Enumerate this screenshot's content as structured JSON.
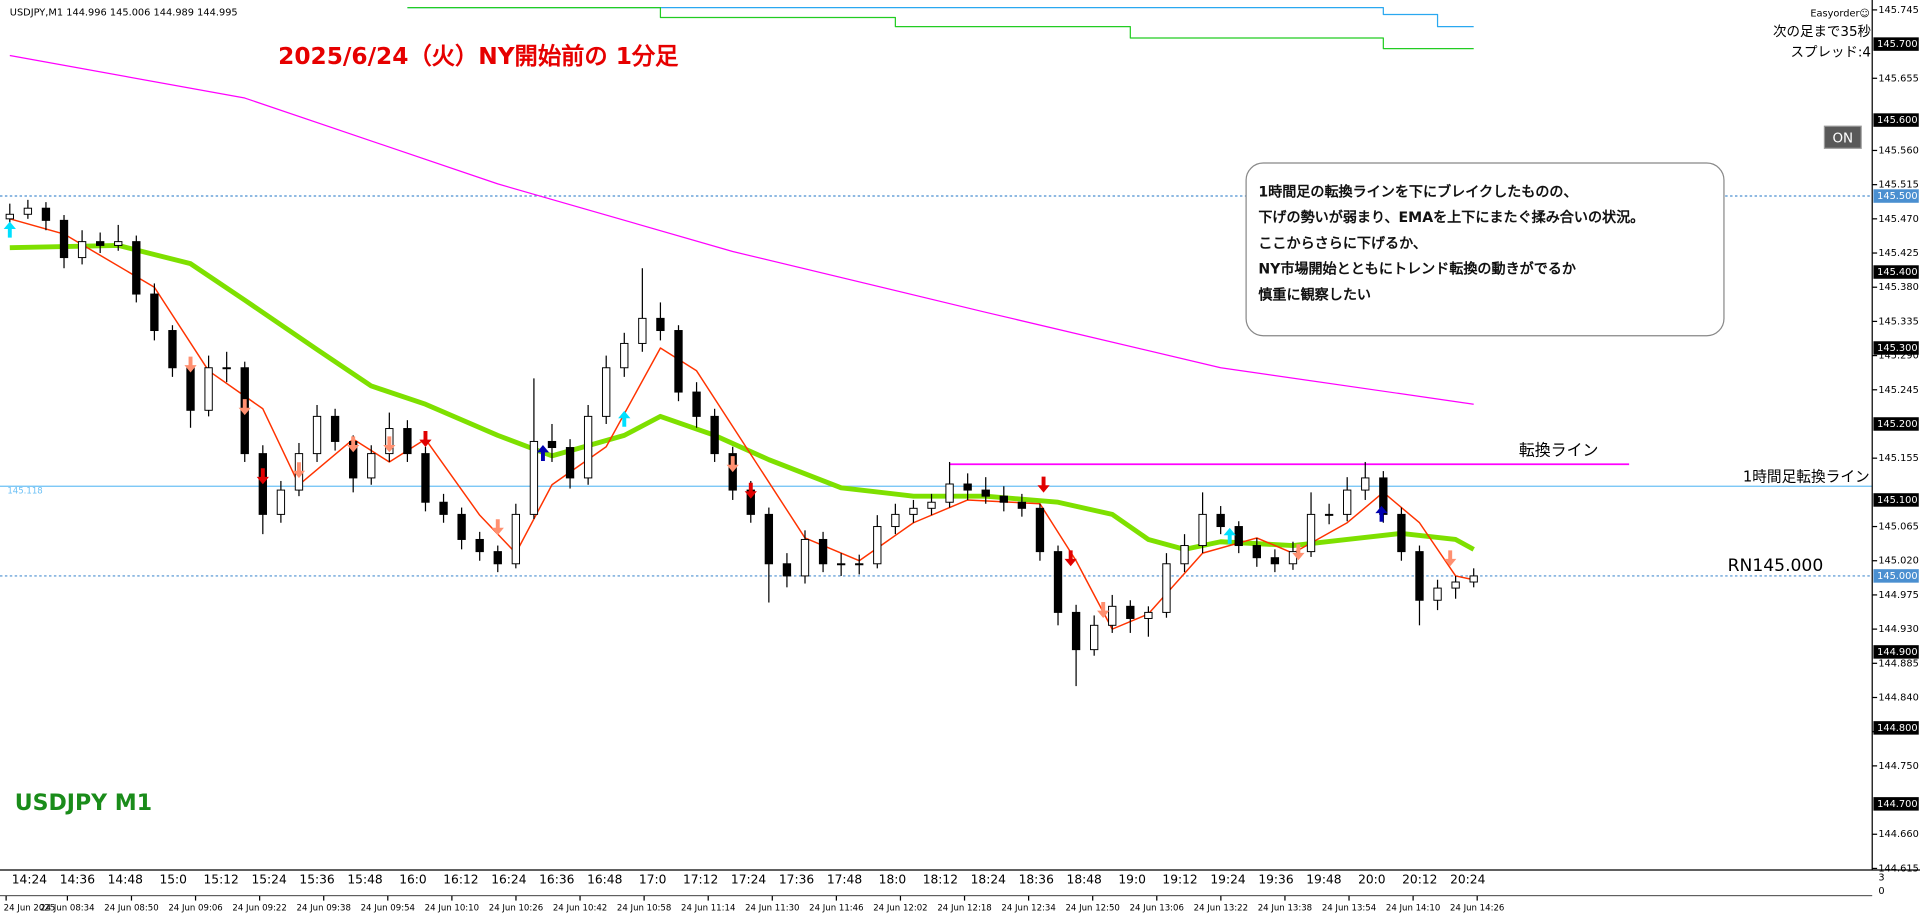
{
  "ui": {
    "header": {
      "symbol": "USDJPY,M1",
      "prices": [
        144.996,
        145.006,
        144.989,
        144.995
      ]
    },
    "broker": "Easyorder☺",
    "countdown": "次の足まで35秒",
    "spread": "スプレッド:4",
    "button": "ON",
    "subwindow_ticks": [
      "3",
      "0"
    ]
  },
  "chart_data": {
    "type": "candlestick",
    "title": "2025/6/24（火）NY開始前の 1分足",
    "watermark": "USDJPY M1",
    "note": [
      "1時間足の転換ラインを下にブレイクしたものの、",
      "下げの勢いが弱まり、EMAを上下にまたぐ揉み合いの状況。",
      "ここからさらに下げるか、",
      "NY市場開始とともにトレンド転換の動きがでるか",
      "慎重に観察したい"
    ],
    "ylim": [
      144.613,
      145.758
    ],
    "yticks": [
      145.745,
      145.655,
      {
        "value": 145.56,
        "label": "145.560"
      },
      145.515,
      {
        "value": 145.47,
        "label": "145.470"
      },
      145.425,
      {
        "value": 145.38,
        "label": "145.380"
      },
      145.335,
      {
        "value": 145.29,
        "label": "145.290"
      },
      145.245,
      145.155,
      145.065,
      {
        "value": 145.02,
        "label": "145.020"
      },
      144.975,
      {
        "value": 144.93,
        "label": "144.930"
      },
      144.885,
      {
        "value": 144.84,
        "label": "144.840"
      },
      144.795,
      {
        "value": 144.75,
        "label": "144.750"
      },
      {
        "value": 144.66,
        "label": "144.660"
      },
      144.615
    ],
    "price_marks": [
      {
        "value": 145.7,
        "label": "145.700"
      },
      {
        "value": 145.6,
        "label": "145.600"
      },
      {
        "value": 145.5,
        "label": "145.500",
        "color": "#4a8fd0"
      },
      {
        "value": 145.4,
        "label": "145.400"
      },
      {
        "value": 145.3,
        "label": "145.300"
      },
      {
        "value": 145.2,
        "label": "145.200"
      },
      {
        "value": 145.1,
        "label": "145.100"
      },
      {
        "value": 145.0,
        "label": "145.000",
        "color": "#4a8fd0"
      },
      {
        "value": 144.9,
        "label": "144.900"
      },
      {
        "value": 144.8,
        "label": "144.800"
      },
      {
        "value": 144.7,
        "label": "144.700"
      }
    ],
    "time_labels": [
      "14:24",
      "14:36",
      "14:48",
      "15:0",
      "15:12",
      "15:24",
      "15:36",
      "15:48",
      "16:0",
      "16:12",
      "16:24",
      "16:36",
      "16:48",
      "17:0",
      "17:12",
      "17:24",
      "17:36",
      "17:48",
      "18:0",
      "18:12",
      "18:24",
      "18:36",
      "18:48",
      "19:0",
      "19:12",
      "19:24",
      "19:36",
      "19:48",
      "20:0",
      "20:12",
      "20:24"
    ],
    "date_labels": [
      "24 Jun 2025",
      "24 Jun 08:34",
      "24 Jun 08:50",
      "24 Jun 09:06",
      "24 Jun 09:22",
      "24 Jun 09:38",
      "24 Jun 09:54",
      "24 Jun 10:10",
      "24 Jun 10:26",
      "24 Jun 10:42",
      "24 Jun 10:58",
      "24 Jun 11:14",
      "24 Jun 11:30",
      "24 Jun 11:46",
      "24 Jun 12:02",
      "24 Jun 12:18",
      "24 Jun 12:34",
      "24 Jun 12:50",
      "24 Jun 13:06",
      "24 Jun 13:22",
      "24 Jun 13:38",
      "24 Jun 13:54",
      "24 Jun 14:10",
      "24 Jun 14:26"
    ],
    "hlines": [
      {
        "value": 145.5,
        "color": "#4a8fd0",
        "dash": true
      },
      {
        "value": 145.0,
        "label": "RN145.000",
        "color": "#4a8fd0",
        "dash": true
      },
      {
        "value": 145.118,
        "label": "1時間足転換ライン",
        "color": "#6cc0f5",
        "dash": false
      }
    ],
    "segment": {
      "label": "転換ライン",
      "value": 145.147,
      "from": 52,
      "to": 89.6,
      "color": "#ff00ff"
    },
    "ohlc": [
      [
        145.47,
        145.49,
        145.46,
        145.476
      ],
      [
        145.476,
        145.495,
        145.47,
        145.484
      ],
      [
        145.484,
        145.492,
        145.455,
        145.468
      ],
      [
        145.468,
        145.475,
        145.405,
        145.419
      ],
      [
        145.419,
        145.455,
        145.41,
        145.44
      ],
      [
        145.44,
        145.452,
        145.425,
        145.435
      ],
      [
        145.435,
        145.462,
        145.428,
        145.44
      ],
      [
        145.44,
        145.448,
        145.36,
        145.371
      ],
      [
        145.371,
        145.385,
        145.31,
        145.323
      ],
      [
        145.323,
        145.33,
        145.262,
        145.274
      ],
      [
        145.274,
        145.283,
        145.195,
        145.218
      ],
      [
        145.218,
        145.29,
        145.21,
        145.274
      ],
      [
        145.274,
        145.295,
        145.255,
        145.274
      ],
      [
        145.274,
        145.282,
        145.15,
        145.161
      ],
      [
        145.161,
        145.172,
        145.055,
        145.081
      ],
      [
        145.081,
        145.125,
        145.07,
        145.113
      ],
      [
        145.113,
        145.175,
        145.105,
        145.161
      ],
      [
        145.161,
        145.225,
        145.15,
        145.21
      ],
      [
        145.21,
        145.22,
        145.165,
        145.177
      ],
      [
        145.177,
        145.185,
        145.11,
        145.129
      ],
      [
        145.129,
        145.172,
        145.12,
        145.161
      ],
      [
        145.161,
        145.215,
        145.15,
        145.194
      ],
      [
        145.194,
        145.205,
        145.15,
        145.161
      ],
      [
        145.161,
        145.17,
        145.085,
        145.097
      ],
      [
        145.097,
        145.108,
        145.07,
        145.081
      ],
      [
        145.081,
        145.09,
        145.035,
        145.048
      ],
      [
        145.048,
        145.058,
        145.02,
        145.032
      ],
      [
        145.032,
        145.04,
        145.005,
        145.016
      ],
      [
        145.016,
        145.095,
        145.01,
        145.081
      ],
      [
        145.081,
        145.26,
        145.075,
        145.177
      ],
      [
        145.177,
        145.2,
        145.15,
        145.169
      ],
      [
        145.169,
        145.18,
        145.115,
        145.129
      ],
      [
        145.129,
        145.225,
        145.12,
        145.21
      ],
      [
        145.21,
        145.29,
        145.2,
        145.274
      ],
      [
        145.274,
        145.32,
        145.262,
        145.306
      ],
      [
        145.306,
        145.405,
        145.295,
        145.339
      ],
      [
        145.339,
        145.36,
        145.31,
        145.323
      ],
      [
        145.323,
        145.33,
        145.23,
        145.242
      ],
      [
        145.242,
        145.255,
        145.195,
        145.21
      ],
      [
        145.21,
        145.22,
        145.15,
        145.161
      ],
      [
        145.161,
        145.17,
        145.1,
        145.113
      ],
      [
        145.113,
        145.125,
        145.07,
        145.081
      ],
      [
        145.081,
        145.09,
        144.965,
        145.016
      ],
      [
        145.016,
        145.03,
        144.985,
        145.0
      ],
      [
        145.0,
        145.06,
        144.99,
        145.048
      ],
      [
        145.048,
        145.058,
        145.005,
        145.016
      ],
      [
        145.016,
        145.03,
        145.0,
        145.016
      ],
      [
        145.016,
        145.028,
        145.002,
        145.016
      ],
      [
        145.016,
        145.08,
        145.01,
        145.065
      ],
      [
        145.065,
        145.095,
        145.055,
        145.081
      ],
      [
        145.081,
        145.1,
        145.07,
        145.089
      ],
      [
        145.089,
        145.108,
        145.08,
        145.097
      ],
      [
        145.097,
        145.15,
        145.09,
        145.121
      ],
      [
        145.121,
        145.135,
        145.1,
        145.113
      ],
      [
        145.113,
        145.13,
        145.095,
        145.105
      ],
      [
        145.105,
        145.118,
        145.085,
        145.097
      ],
      [
        145.097,
        145.108,
        145.078,
        145.089
      ],
      [
        145.089,
        145.095,
        145.02,
        145.032
      ],
      [
        145.032,
        145.04,
        144.935,
        144.952
      ],
      [
        144.952,
        144.962,
        144.855,
        144.903
      ],
      [
        144.903,
        144.948,
        144.895,
        144.935
      ],
      [
        144.935,
        144.975,
        144.925,
        144.96
      ],
      [
        144.96,
        144.968,
        144.925,
        144.944
      ],
      [
        144.944,
        144.96,
        144.92,
        144.952
      ],
      [
        144.952,
        145.03,
        144.945,
        145.016
      ],
      [
        145.016,
        145.055,
        145.005,
        145.04
      ],
      [
        145.04,
        145.11,
        145.03,
        145.081
      ],
      [
        145.081,
        145.092,
        145.055,
        145.065
      ],
      [
        145.065,
        145.072,
        145.03,
        145.04
      ],
      [
        145.04,
        145.05,
        145.012,
        145.024
      ],
      [
        145.024,
        145.035,
        145.005,
        145.016
      ],
      [
        145.016,
        145.045,
        145.008,
        145.032
      ],
      [
        145.032,
        145.11,
        145.025,
        145.081
      ],
      [
        145.081,
        145.095,
        145.068,
        145.081
      ],
      [
        145.081,
        145.13,
        145.072,
        145.113
      ],
      [
        145.113,
        145.15,
        145.1,
        145.129
      ],
      [
        145.129,
        145.138,
        145.07,
        145.081
      ],
      [
        145.081,
        145.09,
        145.02,
        145.032
      ],
      [
        145.032,
        145.04,
        144.935,
        144.968
      ],
      [
        144.968,
        144.995,
        144.955,
        144.984
      ],
      [
        144.984,
        145.0,
        144.97,
        144.992
      ],
      [
        144.992,
        145.01,
        144.985,
        145.0
      ]
    ],
    "series": [
      {
        "color": "#ff00ff",
        "width": 1,
        "x": [
          0,
          13,
          27,
          40,
          54,
          67,
          81
        ],
        "values": [
          145.685,
          145.629,
          145.516,
          145.427,
          145.347,
          145.274,
          145.226
        ]
      },
      {
        "color": "#7ee000",
        "width": 4,
        "x": [
          0,
          6,
          10,
          13,
          17,
          20,
          23,
          27,
          30,
          34,
          36,
          39,
          42,
          46,
          50,
          54,
          58,
          61,
          63,
          65,
          67,
          71,
          74,
          77,
          80,
          81
        ],
        "values": [
          145.432,
          145.435,
          145.411,
          145.363,
          145.298,
          145.25,
          145.226,
          145.185,
          145.158,
          145.185,
          145.21,
          145.185,
          145.153,
          145.116,
          145.105,
          145.105,
          145.097,
          145.081,
          145.048,
          145.035,
          145.045,
          145.04,
          145.048,
          145.056,
          145.048,
          145.035
        ]
      },
      {
        "color": "#ff3300",
        "width": 1.2,
        "x": [
          0,
          3,
          8,
          11,
          14,
          16,
          19,
          21,
          23,
          26,
          28,
          30,
          33,
          36,
          38,
          41,
          44,
          47,
          50,
          53,
          57,
          59,
          61,
          63,
          66,
          69,
          71,
          74,
          76,
          78,
          80,
          81
        ],
        "values": [
          145.47,
          145.45,
          145.38,
          145.27,
          145.22,
          145.12,
          145.18,
          145.15,
          145.18,
          145.08,
          145.03,
          145.12,
          145.17,
          145.3,
          145.27,
          145.16,
          145.05,
          145.02,
          145.07,
          145.1,
          145.095,
          145.02,
          144.93,
          144.95,
          145.03,
          145.05,
          145.03,
          145.07,
          145.11,
          145.07,
          145.0,
          144.995
        ]
      },
      {
        "color": "#2aa8f0",
        "width": 1,
        "step": true,
        "x": [
          22,
          76,
          79,
          81
        ],
        "values": [
          145.748,
          145.739,
          145.723,
          145.723
        ]
      },
      {
        "color": "#22cc22",
        "width": 1,
        "step": true,
        "x": [
          22,
          36,
          49,
          62,
          76,
          81
        ],
        "values": [
          145.748,
          145.735,
          145.723,
          145.708,
          145.694,
          145.694
        ]
      }
    ],
    "signals": [
      {
        "bar": 0,
        "price": 145.455,
        "dir": "up",
        "color": "#00e0ff"
      },
      {
        "bar": 10,
        "price": 145.279,
        "dir": "down",
        "color": "#ff9070"
      },
      {
        "bar": 13,
        "price": 145.223,
        "dir": "down",
        "color": "#ff9070"
      },
      {
        "bar": 14,
        "price": 145.132,
        "dir": "down",
        "color": "#e00000"
      },
      {
        "bar": 16,
        "price": 145.14,
        "dir": "down",
        "color": "#ff9070"
      },
      {
        "bar": 19,
        "price": 145.174,
        "dir": "down",
        "color": "#ff9070"
      },
      {
        "bar": 21,
        "price": 145.174,
        "dir": "down",
        "color": "#ff9070"
      },
      {
        "bar": 23,
        "price": 145.181,
        "dir": "down",
        "color": "#e00000"
      },
      {
        "bar": 27,
        "price": 145.065,
        "dir": "down",
        "color": "#ff9070"
      },
      {
        "bar": 29.5,
        "price": 145.161,
        "dir": "up",
        "color": "#0000b0"
      },
      {
        "bar": 34,
        "price": 145.206,
        "dir": "up",
        "color": "#00e0ff"
      },
      {
        "bar": 40,
        "price": 145.148,
        "dir": "down",
        "color": "#ff9070"
      },
      {
        "bar": 41,
        "price": 145.113,
        "dir": "down",
        "color": "#e00000"
      },
      {
        "bar": 57.2,
        "price": 145.121,
        "dir": "down",
        "color": "#e00000"
      },
      {
        "bar": 58.7,
        "price": 145.024,
        "dir": "down",
        "color": "#e00000"
      },
      {
        "bar": 60.5,
        "price": 144.956,
        "dir": "down",
        "color": "#ff9070"
      },
      {
        "bar": 67.5,
        "price": 145.052,
        "dir": "up",
        "color": "#00e0ff"
      },
      {
        "bar": 71.3,
        "price": 145.032,
        "dir": "down",
        "color": "#ff9070"
      },
      {
        "bar": 75.9,
        "price": 145.081,
        "dir": "up",
        "color": "#0000b0"
      },
      {
        "bar": 79.7,
        "price": 145.024,
        "dir": "down",
        "color": "#ff9070"
      }
    ]
  }
}
